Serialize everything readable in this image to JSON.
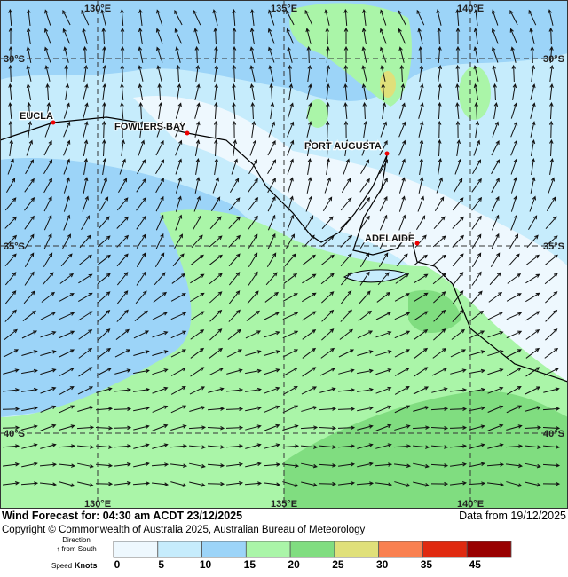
{
  "map": {
    "lon_labels": [
      "130°E",
      "135°E",
      "140°E"
    ],
    "lat_labels": [
      "30°S",
      "35°S",
      "40°S"
    ],
    "places": [
      "EUCLA",
      "FOWLERS BAY",
      "PORT AUGUSTA",
      "ADELAIDE"
    ]
  },
  "footer": {
    "title": "Wind Forecast for: 04:30 am ACDT 23/12/2025",
    "data_from": "Data from 19/12/2025",
    "copyright": "Copyright © Commonwealth of Australia 2025, Australian Bureau of Meteorology"
  },
  "legend": {
    "direction": "Direction",
    "from_south": "↑ from South",
    "speed": "Speed",
    "units": "Knots",
    "ticks": [
      0,
      5,
      10,
      15,
      20,
      25,
      30,
      35,
      45
    ],
    "colors": [
      "#eef8fe",
      "#c6ecfc",
      "#9cd4f8",
      "#aaf5a8",
      "#80dd80",
      "#e0e07a",
      "#f98050",
      "#e02a10",
      "#990000"
    ]
  }
}
